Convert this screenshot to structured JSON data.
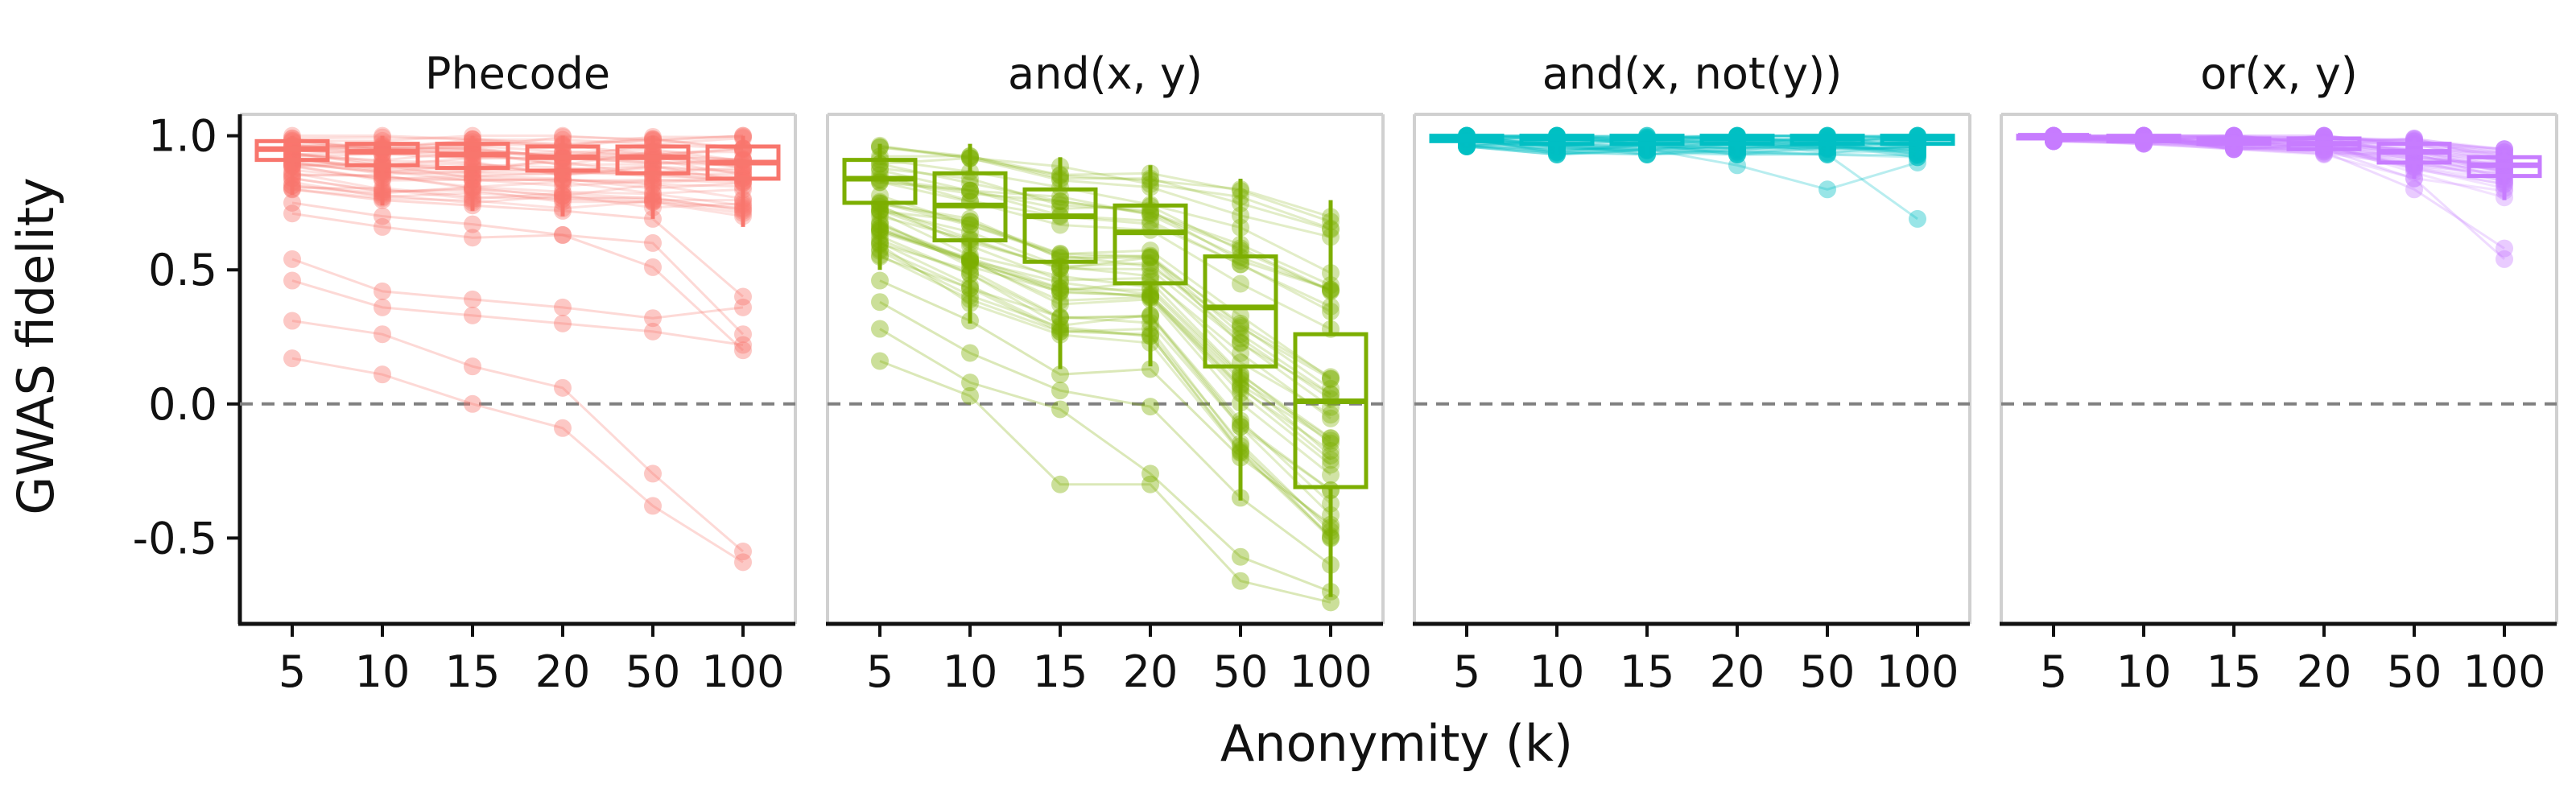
{
  "figure": {
    "ylabel": "GWAS fidelity",
    "xlabel": "Anonymity (k)"
  },
  "chart_data": {
    "type": "box",
    "ylim": [
      -0.82,
      1.08
    ],
    "yticks": [
      1.0,
      0.5,
      0.0,
      -0.5
    ],
    "ytick_labels": [
      "1.0",
      "0.5",
      "0.0",
      "-0.5"
    ],
    "reference_line": 0.0,
    "categories": [
      "5",
      "10",
      "15",
      "20",
      "50",
      "100"
    ],
    "panels": [
      {
        "title": "Phecode",
        "color": "#f8766d",
        "boxes": [
          {
            "q1": 0.91,
            "median": 0.95,
            "q3": 0.98,
            "whislo": 0.78,
            "whishi": 1.0
          },
          {
            "q1": 0.89,
            "median": 0.94,
            "q3": 0.97,
            "whislo": 0.74,
            "whishi": 1.0
          },
          {
            "q1": 0.88,
            "median": 0.93,
            "q3": 0.97,
            "whislo": 0.72,
            "whishi": 1.0
          },
          {
            "q1": 0.87,
            "median": 0.92,
            "q3": 0.96,
            "whislo": 0.7,
            "whishi": 1.0
          },
          {
            "q1": 0.86,
            "median": 0.92,
            "q3": 0.96,
            "whislo": 0.69,
            "whishi": 1.0
          },
          {
            "q1": 0.84,
            "median": 0.9,
            "q3": 0.96,
            "whislo": 0.66,
            "whishi": 1.0
          }
        ],
        "low_traces": [
          [
            0.54,
            0.42,
            0.39,
            0.36,
            0.32,
            0.36
          ],
          [
            0.46,
            0.36,
            0.33,
            0.3,
            0.27,
            0.22
          ],
          [
            0.31,
            0.26,
            0.14,
            0.06,
            -0.26,
            -0.55
          ],
          [
            0.17,
            0.11,
            0.0,
            -0.09,
            -0.38,
            -0.59
          ],
          [
            0.75,
            0.7,
            0.67,
            0.63,
            0.6,
            0.26
          ],
          [
            0.71,
            0.66,
            0.62,
            0.63,
            0.51,
            0.2
          ],
          [
            0.8,
            0.76,
            0.74,
            0.72,
            0.69,
            0.4
          ]
        ]
      },
      {
        "title": "and(x, y)",
        "color": "#7cae00",
        "boxes": [
          {
            "q1": 0.75,
            "median": 0.84,
            "q3": 0.91,
            "whislo": 0.5,
            "whishi": 0.97
          },
          {
            "q1": 0.61,
            "median": 0.74,
            "q3": 0.86,
            "whislo": 0.3,
            "whishi": 0.97
          },
          {
            "q1": 0.53,
            "median": 0.7,
            "q3": 0.8,
            "whislo": 0.13,
            "whishi": 0.92
          },
          {
            "q1": 0.45,
            "median": 0.64,
            "q3": 0.74,
            "whislo": 0.14,
            "whishi": 0.89
          },
          {
            "q1": 0.14,
            "median": 0.36,
            "q3": 0.55,
            "whislo": -0.36,
            "whishi": 0.84
          },
          {
            "q1": -0.31,
            "median": 0.01,
            "q3": 0.26,
            "whislo": -0.72,
            "whishi": 0.76
          }
        ],
        "low_traces": [
          [
            0.16,
            0.03,
            -0.3,
            -0.3,
            -0.66,
            -0.74
          ],
          [
            0.28,
            0.08,
            -0.02,
            -0.26,
            -0.57,
            -0.7
          ],
          [
            0.38,
            0.19,
            0.05,
            -0.01,
            -0.35,
            -0.6
          ],
          [
            0.46,
            0.31,
            0.11,
            0.13,
            -0.2,
            -0.45
          ]
        ]
      },
      {
        "title": "and(x, not(y))",
        "color": "#00bfc4",
        "boxes": [
          {
            "q1": 0.98,
            "median": 0.99,
            "q3": 1.0,
            "whislo": 0.96,
            "whishi": 1.0
          },
          {
            "q1": 0.97,
            "median": 0.99,
            "q3": 1.0,
            "whislo": 0.93,
            "whishi": 1.0
          },
          {
            "q1": 0.97,
            "median": 0.99,
            "q3": 1.0,
            "whislo": 0.93,
            "whishi": 1.0
          },
          {
            "q1": 0.97,
            "median": 0.99,
            "q3": 1.0,
            "whislo": 0.93,
            "whishi": 1.0
          },
          {
            "q1": 0.97,
            "median": 0.99,
            "q3": 1.0,
            "whislo": 0.93,
            "whishi": 1.0
          },
          {
            "q1": 0.97,
            "median": 0.99,
            "q3": 1.0,
            "whislo": 0.92,
            "whishi": 1.0
          }
        ],
        "low_traces": [
          [
            0.99,
            0.97,
            0.96,
            0.94,
            0.93,
            0.69
          ],
          [
            0.98,
            0.96,
            0.95,
            0.89,
            0.8,
            0.9
          ]
        ]
      },
      {
        "title": "or(x, y)",
        "color": "#c77cff",
        "boxes": [
          {
            "q1": 0.99,
            "median": 1.0,
            "q3": 1.0,
            "whislo": 0.98,
            "whishi": 1.0
          },
          {
            "q1": 0.98,
            "median": 0.99,
            "q3": 1.0,
            "whislo": 0.97,
            "whishi": 1.0
          },
          {
            "q1": 0.97,
            "median": 0.98,
            "q3": 0.99,
            "whislo": 0.95,
            "whishi": 1.0
          },
          {
            "q1": 0.95,
            "median": 0.97,
            "q3": 0.99,
            "whislo": 0.93,
            "whishi": 1.0
          },
          {
            "q1": 0.9,
            "median": 0.94,
            "q3": 0.97,
            "whislo": 0.84,
            "whishi": 0.99
          },
          {
            "q1": 0.85,
            "median": 0.89,
            "q3": 0.92,
            "whislo": 0.76,
            "whishi": 0.95
          }
        ],
        "low_traces": [
          [
            0.99,
            0.98,
            0.97,
            0.95,
            0.84,
            0.54
          ],
          [
            0.99,
            0.98,
            0.96,
            0.94,
            0.8,
            0.58
          ]
        ]
      }
    ]
  }
}
